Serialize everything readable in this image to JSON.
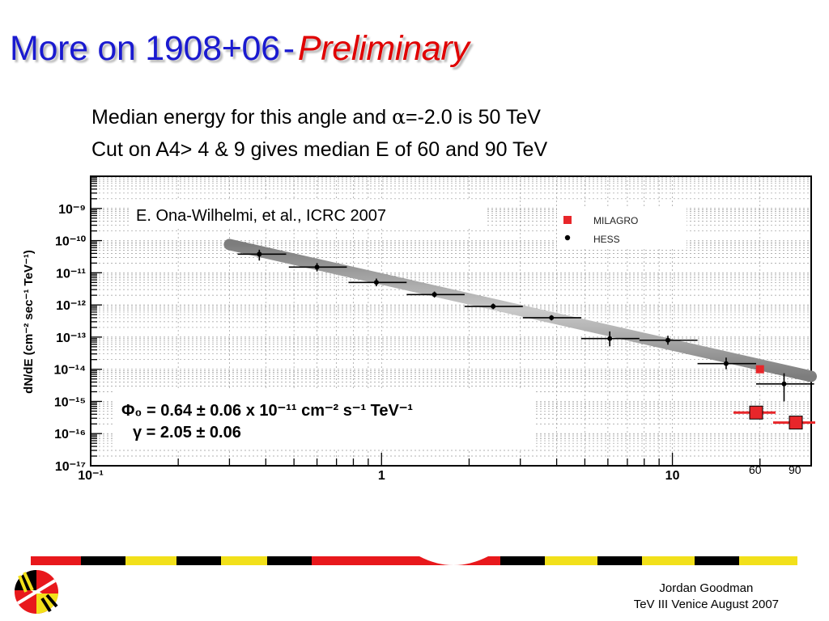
{
  "slide": {
    "title_main": "More on 1908+06",
    "title_dash": "-",
    "title_emph": "Preliminary",
    "line1_pre": "Median energy for this angle and ",
    "line1_alpha": "α",
    "line1_post": "=-2.0 is 50 TeV",
    "line2": "Cut on A4> 4 & 9 gives median E of 60 and 90 TeV",
    "footer_name": "Jordan Goodman",
    "footer_event": "TeV III Venice August 2007"
  },
  "chart_data": {
    "type": "scatter",
    "x_scale": "log",
    "y_scale": "log",
    "xlim": [
      0.1,
      30
    ],
    "ylim": [
      1e-17,
      1e-08
    ],
    "x_ticks": [
      {
        "v": 0.1,
        "label": "10⁻¹"
      },
      {
        "v": 1,
        "label": "1"
      },
      {
        "v": 10,
        "label": "10"
      }
    ],
    "y_ticks": [
      {
        "v": 1e-09,
        "label": "10⁻⁹"
      },
      {
        "v": 1e-10,
        "label": "10⁻¹⁰"
      },
      {
        "v": 1e-11,
        "label": "10⁻¹¹"
      },
      {
        "v": 1e-12,
        "label": "10⁻¹²"
      },
      {
        "v": 1e-13,
        "label": "10⁻¹³"
      },
      {
        "v": 1e-14,
        "label": "10⁻¹⁴"
      },
      {
        "v": 1e-15,
        "label": "10⁻¹⁵"
      },
      {
        "v": 1e-16,
        "label": "10⁻¹⁶"
      },
      {
        "v": 1e-17,
        "label": "10⁻¹⁷"
      }
    ],
    "ylabel": "dN/dE (cm⁻² sec⁻¹ TeV⁻¹)",
    "grid": true,
    "annotation": "E. Ona-Wilhelmi, et al., ICRC 2007",
    "fit": {
      "phi0_label": "Φ₀ = 0.64 ± 0.06 x 10⁻¹¹ cm⁻² s⁻¹ TeV⁻¹",
      "gamma_label": "γ = 2.05 ± 0.06",
      "E_range": [
        0.3,
        30
      ],
      "norm_E": 1,
      "norm": 6.4e-12,
      "index": 2.05
    },
    "legend": {
      "position": "top-right",
      "entries": [
        {
          "name": "MILAGRO",
          "color": "#e8262a"
        },
        {
          "name": "HESS",
          "color": "#000000"
        }
      ]
    },
    "series": [
      {
        "name": "HESS",
        "color": "#000000",
        "points": [
          {
            "x": 0.38,
            "y": 3.8e-11,
            "xlo": 0.32,
            "xhi": 0.47,
            "ylo": 2.4e-11,
            "yhi": 5.2e-11
          },
          {
            "x": 0.6,
            "y": 1.5e-11,
            "xlo": 0.48,
            "xhi": 0.76,
            "ylo": 1.1e-11,
            "yhi": 2e-11
          },
          {
            "x": 0.96,
            "y": 5e-12,
            "xlo": 0.77,
            "xhi": 1.22,
            "ylo": 3.8e-12,
            "yhi": 6.6e-12
          },
          {
            "x": 1.52,
            "y": 2.1e-12,
            "xlo": 1.22,
            "xhi": 1.93,
            "ylo": 1.7e-12,
            "yhi": 2.6e-12
          },
          {
            "x": 2.42,
            "y": 9e-13,
            "xlo": 1.93,
            "xhi": 3.06,
            "ylo": 7.4e-13,
            "yhi": 1.1e-12
          },
          {
            "x": 3.84,
            "y": 4e-13,
            "xlo": 3.06,
            "xhi": 4.86,
            "ylo": 3.3e-13,
            "yhi": 4.8e-13
          },
          {
            "x": 6.09,
            "y": 9e-14,
            "xlo": 4.86,
            "xhi": 7.7,
            "ylo": 5.2e-14,
            "yhi": 1.5e-13
          },
          {
            "x": 9.65,
            "y": 8e-14,
            "xlo": 7.7,
            "xhi": 12.2,
            "ylo": 5.8e-14,
            "yhi": 1.1e-13
          },
          {
            "x": 15.3,
            "y": 1.5e-14,
            "xlo": 12.2,
            "xhi": 19.4,
            "ylo": 1e-14,
            "yhi": 2.3e-14
          },
          {
            "x": 24.2,
            "y": 3.5e-15,
            "xlo": 19.4,
            "xhi": 30.7,
            "ylo": 1e-15,
            "yhi": 7.5e-15
          }
        ]
      },
      {
        "name": "MILAGRO",
        "color": "#e8262a",
        "points": [
          {
            "x": 20,
            "y": 1e-14,
            "xlo": null,
            "xhi": null,
            "ylo": null,
            "yhi": null
          }
        ]
      }
    ],
    "extra_points": {
      "color": "#e8262a",
      "points": [
        {
          "label": "60",
          "y": 4.5e-16
        },
        {
          "label": "90",
          "y": 2.2e-16
        }
      ]
    }
  }
}
